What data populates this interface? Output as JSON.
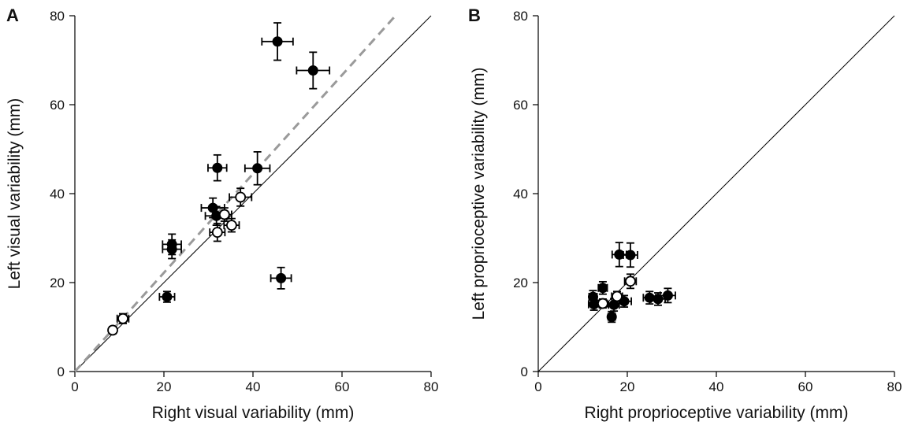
{
  "chart_data": [
    {
      "type": "scatter",
      "panel_label": "A",
      "xlabel": "Right visual variability (mm)",
      "ylabel": "Left visual variability (mm)",
      "xlim": [
        0,
        80
      ],
      "ylim": [
        0,
        80
      ],
      "xticks": [
        0,
        20,
        40,
        60,
        80
      ],
      "yticks": [
        0,
        20,
        40,
        60,
        80
      ],
      "identity_line": true,
      "fit_line": {
        "style": "dashed",
        "color": "#9a9a9a",
        "x": [
          0,
          72
        ],
        "y": [
          0,
          80
        ]
      },
      "series": [
        {
          "marker": "filled",
          "points": [
            {
              "x": 45.5,
              "y": 74.2,
              "xerr": 3.5,
              "yerr": 4.2
            },
            {
              "x": 53.5,
              "y": 67.7,
              "xerr": 3.7,
              "yerr": 4.1
            },
            {
              "x": 32.0,
              "y": 45.8,
              "xerr": 2.1,
              "yerr": 2.9
            },
            {
              "x": 41.0,
              "y": 45.7,
              "xerr": 2.8,
              "yerr": 3.7
            },
            {
              "x": 31.0,
              "y": 36.8,
              "xerr": 2.6,
              "yerr": 2.2
            },
            {
              "x": 31.8,
              "y": 35.0,
              "xerr": 2.5,
              "yerr": 2.1
            },
            {
              "x": 21.8,
              "y": 28.6,
              "xerr": 2.1,
              "yerr": 2.3
            },
            {
              "x": 21.8,
              "y": 27.5,
              "xerr": 2.1,
              "yerr": 2.1
            },
            {
              "x": 20.7,
              "y": 16.8,
              "xerr": 1.7,
              "yerr": 1.2
            },
            {
              "x": 46.3,
              "y": 21.0,
              "xerr": 2.3,
              "yerr": 2.4
            }
          ]
        },
        {
          "marker": "open",
          "points": [
            {
              "x": 37.2,
              "y": 39.2,
              "xerr": 2.5,
              "yerr": 2.0
            },
            {
              "x": 33.6,
              "y": 35.3,
              "xerr": 1.6,
              "yerr": 1.5
            },
            {
              "x": 35.2,
              "y": 32.9,
              "xerr": 1.7,
              "yerr": 1.5
            },
            {
              "x": 32.0,
              "y": 31.3,
              "xerr": 1.7,
              "yerr": 2.0
            },
            {
              "x": 10.8,
              "y": 11.9,
              "xerr": 1.3,
              "yerr": 1.1
            },
            {
              "x": 8.5,
              "y": 9.3,
              "xerr": 0.7,
              "yerr": 0.8
            }
          ]
        }
      ]
    },
    {
      "type": "scatter",
      "panel_label": "B",
      "xlabel": "Right proprioceptive variability (mm)",
      "ylabel": "Left proprioceptive variability (mm)",
      "xlim": [
        0,
        80
      ],
      "ylim": [
        0,
        80
      ],
      "xticks": [
        0,
        20,
        40,
        60,
        80
      ],
      "yticks": [
        0,
        20,
        40,
        60,
        80
      ],
      "identity_line": true,
      "series": [
        {
          "marker": "filled",
          "points": [
            {
              "x": 18.2,
              "y": 26.3,
              "xerr": 1.6,
              "yerr": 2.7
            },
            {
              "x": 20.7,
              "y": 26.2,
              "xerr": 1.6,
              "yerr": 2.7
            },
            {
              "x": 14.5,
              "y": 18.8,
              "xerr": 1.0,
              "yerr": 1.4
            },
            {
              "x": 12.3,
              "y": 16.8,
              "xerr": 0.9,
              "yerr": 1.4
            },
            {
              "x": 12.5,
              "y": 15.1,
              "xerr": 1.2,
              "yerr": 1.3
            },
            {
              "x": 16.5,
              "y": 12.3,
              "xerr": 0.8,
              "yerr": 1.2
            },
            {
              "x": 17.0,
              "y": 15.0,
              "xerr": 1.2,
              "yerr": 1.4
            },
            {
              "x": 19.3,
              "y": 15.8,
              "xerr": 1.6,
              "yerr": 1.3
            },
            {
              "x": 25.0,
              "y": 16.6,
              "xerr": 1.4,
              "yerr": 1.4
            },
            {
              "x": 26.9,
              "y": 16.3,
              "xerr": 1.6,
              "yerr": 1.4
            },
            {
              "x": 29.1,
              "y": 17.1,
              "xerr": 1.7,
              "yerr": 1.6
            }
          ]
        },
        {
          "marker": "open",
          "points": [
            {
              "x": 20.7,
              "y": 20.3,
              "xerr": 1.3,
              "yerr": 1.6
            },
            {
              "x": 17.7,
              "y": 16.9,
              "xerr": 1.2,
              "yerr": 1.1
            },
            {
              "x": 14.5,
              "y": 15.3,
              "xerr": 1.0,
              "yerr": 1.0
            }
          ]
        }
      ]
    }
  ]
}
